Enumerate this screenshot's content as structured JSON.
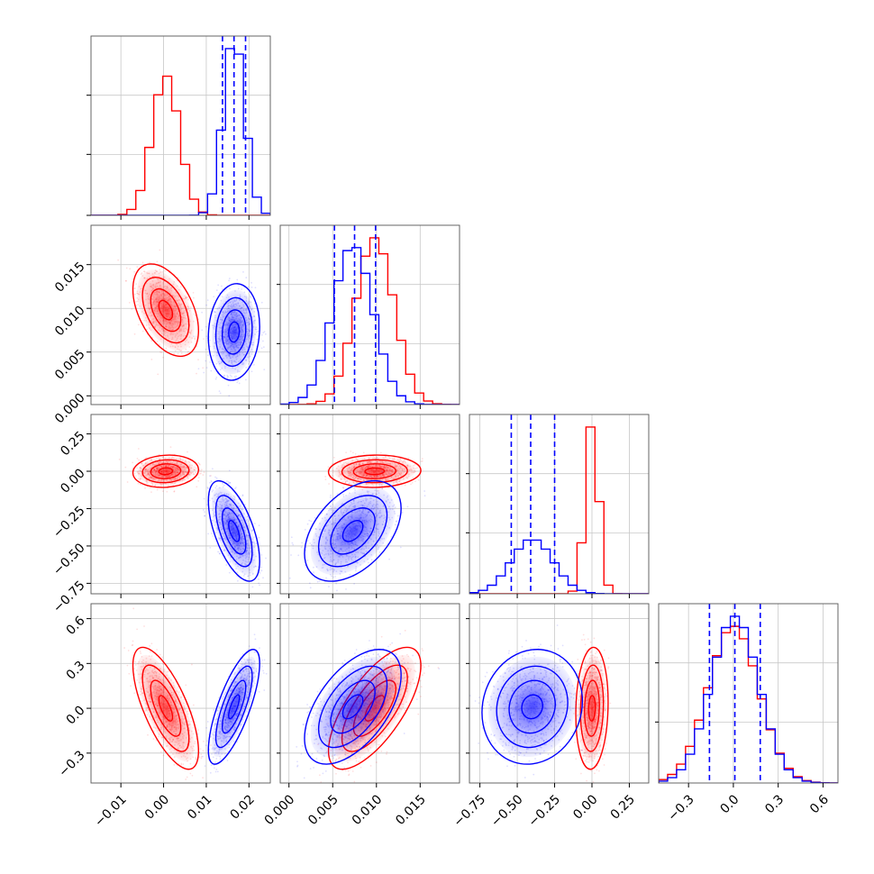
{
  "chart_data": {
    "type": "corner",
    "grid": true,
    "colors": {
      "red": "#ff0000",
      "blue": "#0000ff"
    },
    "series": [
      {
        "color": "#ff0000",
        "mean": [
          0.0005,
          0.0098,
          0.0,
          0.0
        ],
        "sd": [
          0.0032,
          0.0022,
          0.045,
          0.17
        ],
        "corr": [
          [
            1,
            -0.45,
            0.1,
            -0.7
          ],
          [
            -0.45,
            1,
            0.05,
            0.7
          ],
          [
            0.1,
            0.05,
            1,
            0.1
          ],
          [
            -0.7,
            0.7,
            0.1,
            1
          ]
        ]
      },
      {
        "color": "#0000ff",
        "mean": [
          0.0165,
          0.0073,
          -0.4,
          0.01
        ],
        "sd": [
          0.0025,
          0.0023,
          0.14,
          0.16
        ],
        "corr": [
          [
            1,
            0.1,
            -0.6,
            0.75
          ],
          [
            0.1,
            1,
            0.45,
            0.55
          ],
          [
            -0.6,
            0.45,
            1,
            0.1
          ],
          [
            0.75,
            0.55,
            0.1,
            1
          ]
        ]
      }
    ],
    "quantile_lines": [
      [
        0.0138,
        0.0165,
        0.0192
      ],
      [
        0.0052,
        0.0075,
        0.0099
      ],
      [
        -0.54,
        -0.41,
        -0.25
      ],
      [
        -0.16,
        0.01,
        0.18
      ]
    ],
    "params": [
      {
        "range": [
          -0.017,
          0.025
        ],
        "ticks": [
          -0.01,
          0.0,
          0.01,
          0.02
        ],
        "tick_labels": [
          "−0.01",
          "0.00",
          "0.01",
          "0.02"
        ]
      },
      {
        "range": [
          -0.001,
          0.0195
        ],
        "ticks": [
          0.0,
          0.005,
          0.01,
          0.015
        ],
        "tick_labels": [
          "0.000",
          "0.005",
          "0.010",
          "0.015"
        ]
      },
      {
        "range": [
          -0.82,
          0.38
        ],
        "ticks": [
          -0.75,
          -0.5,
          -0.25,
          0.0,
          0.25
        ],
        "tick_labels": [
          "−0.75",
          "−0.50",
          "−0.25",
          "0.00",
          "0.25"
        ]
      },
      {
        "range": [
          -0.5,
          0.7
        ],
        "ticks": [
          -0.3,
          0.0,
          0.3,
          0.6
        ],
        "tick_labels": [
          "−0.3",
          "0.0",
          "0.3",
          "0.6"
        ]
      }
    ]
  }
}
